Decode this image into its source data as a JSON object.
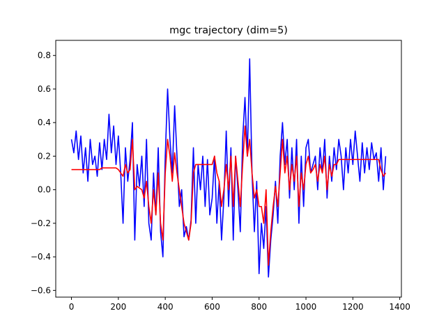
{
  "chart_data": {
    "type": "line",
    "title": "mgc trajectory (dim=5)",
    "xlabel": "",
    "ylabel": "",
    "xlim": [
      -67,
      1407
    ],
    "ylim": [
      -0.64,
      0.89
    ],
    "x_ticks": [
      0,
      200,
      400,
      600,
      800,
      1000,
      1200,
      1400
    ],
    "y_ticks": [
      -0.6,
      -0.4,
      -0.2,
      0.0,
      0.2,
      0.4,
      0.6,
      0.8
    ],
    "x_tick_labels": [
      "0",
      "200",
      "400",
      "600",
      "800",
      "1000",
      "1200",
      "1400"
    ],
    "y_tick_labels": [
      "−0.6",
      "−0.4",
      "−0.2",
      "0.0",
      "0.2",
      "0.4",
      "0.6",
      "0.8"
    ],
    "grid": false,
    "legend": "none",
    "series": [
      {
        "color": "#0000ff",
        "x": [
          0,
          10,
          20,
          30,
          40,
          50,
          60,
          70,
          80,
          90,
          100,
          110,
          120,
          130,
          140,
          150,
          160,
          170,
          180,
          190,
          200,
          210,
          220,
          230,
          240,
          250,
          260,
          270,
          280,
          290,
          300,
          310,
          320,
          330,
          340,
          350,
          360,
          370,
          380,
          390,
          400,
          410,
          420,
          430,
          440,
          450,
          460,
          470,
          480,
          490,
          500,
          510,
          520,
          530,
          540,
          550,
          560,
          570,
          580,
          590,
          600,
          610,
          620,
          630,
          640,
          650,
          660,
          670,
          680,
          690,
          700,
          710,
          720,
          730,
          740,
          750,
          760,
          770,
          780,
          790,
          800,
          810,
          820,
          830,
          840,
          850,
          860,
          870,
          880,
          890,
          900,
          910,
          920,
          930,
          940,
          950,
          960,
          970,
          980,
          990,
          1000,
          1010,
          1020,
          1030,
          1040,
          1050,
          1060,
          1070,
          1080,
          1090,
          1100,
          1110,
          1120,
          1130,
          1140,
          1150,
          1160,
          1170,
          1180,
          1190,
          1200,
          1210,
          1220,
          1230,
          1240,
          1250,
          1260,
          1270,
          1280,
          1290,
          1300,
          1310,
          1320,
          1330,
          1340
        ],
        "y": [
          0.3,
          0.22,
          0.35,
          0.18,
          0.32,
          0.1,
          0.25,
          0.05,
          0.3,
          0.15,
          0.2,
          0.08,
          0.28,
          0.12,
          0.3,
          0.18,
          0.45,
          0.22,
          0.38,
          0.15,
          0.32,
          0.1,
          -0.2,
          0.25,
          0.05,
          0.18,
          0.4,
          -0.3,
          0.15,
          0.02,
          0.2,
          -0.1,
          0.3,
          -0.2,
          -0.3,
          0.1,
          -0.15,
          0.25,
          -0.25,
          -0.4,
          0.2,
          0.6,
          0.3,
          0.1,
          0.5,
          0.2,
          -0.1,
          0.0,
          -0.28,
          -0.22,
          -0.3,
          -0.18,
          0.25,
          -0.2,
          0.15,
          0.0,
          0.2,
          -0.1,
          0.18,
          -0.15,
          -0.05,
          0.2,
          -0.2,
          0.05,
          -0.3,
          -0.05,
          0.35,
          -0.1,
          0.25,
          -0.3,
          0.2,
          0.0,
          -0.25,
          0.3,
          0.55,
          0.2,
          0.78,
          0.1,
          -0.25,
          0.05,
          -0.5,
          -0.2,
          -0.35,
          -0.1,
          -0.52,
          -0.3,
          -0.15,
          0.05,
          -0.2,
          0.2,
          0.4,
          0.15,
          0.3,
          -0.05,
          0.25,
          0.0,
          0.3,
          -0.2,
          0.2,
          -0.1,
          0.25,
          0.3,
          0.1,
          0.15,
          0.2,
          0.0,
          0.25,
          0.1,
          0.3,
          -0.05,
          0.2,
          0.05,
          0.25,
          0.12,
          0.3,
          0.2,
          0.0,
          0.25,
          0.1,
          0.3,
          0.15,
          0.35,
          0.2,
          0.05,
          0.28,
          0.1,
          0.25,
          0.12,
          0.28,
          0.18,
          0.22,
          0.05,
          0.25,
          0.0,
          0.2
        ]
      },
      {
        "color": "#ff0000",
        "x": [
          0,
          10,
          20,
          30,
          40,
          50,
          60,
          70,
          80,
          90,
          100,
          110,
          120,
          130,
          140,
          150,
          160,
          170,
          180,
          190,
          200,
          210,
          220,
          230,
          240,
          250,
          260,
          270,
          280,
          290,
          300,
          310,
          320,
          330,
          340,
          350,
          360,
          370,
          380,
          390,
          400,
          410,
          420,
          430,
          440,
          450,
          460,
          470,
          480,
          490,
          500,
          510,
          520,
          530,
          540,
          550,
          560,
          570,
          580,
          590,
          600,
          610,
          620,
          630,
          640,
          650,
          660,
          670,
          680,
          690,
          700,
          710,
          720,
          730,
          740,
          750,
          760,
          770,
          780,
          790,
          800,
          810,
          820,
          830,
          840,
          850,
          860,
          870,
          880,
          890,
          900,
          910,
          920,
          930,
          940,
          950,
          960,
          970,
          980,
          990,
          1000,
          1010,
          1020,
          1030,
          1040,
          1050,
          1060,
          1070,
          1080,
          1090,
          1100,
          1110,
          1120,
          1130,
          1140,
          1150,
          1160,
          1170,
          1180,
          1190,
          1200,
          1210,
          1220,
          1230,
          1240,
          1250,
          1260,
          1270,
          1280,
          1290,
          1300,
          1310,
          1320,
          1330,
          1340
        ],
        "y": [
          0.12,
          0.12,
          0.12,
          0.12,
          0.12,
          0.12,
          0.12,
          0.12,
          0.12,
          0.12,
          0.12,
          0.12,
          0.12,
          0.13,
          0.13,
          0.13,
          0.13,
          0.13,
          0.13,
          0.13,
          0.12,
          0.1,
          0.08,
          0.15,
          0.1,
          0.12,
          0.3,
          0.0,
          0.02,
          0.01,
          0.0,
          -0.05,
          0.05,
          -0.1,
          -0.2,
          0.0,
          -0.15,
          0.1,
          -0.2,
          -0.3,
          0.1,
          0.3,
          0.2,
          0.05,
          0.22,
          0.1,
          0.0,
          -0.1,
          -0.2,
          -0.25,
          -0.3,
          -0.2,
          0.1,
          0.15,
          0.15,
          0.15,
          0.15,
          0.15,
          0.15,
          0.15,
          0.15,
          0.2,
          0.1,
          0.05,
          -0.1,
          0.0,
          0.15,
          0.0,
          0.2,
          -0.1,
          0.2,
          0.05,
          -0.1,
          0.15,
          0.38,
          0.2,
          0.3,
          0.1,
          -0.05,
          0.0,
          -0.1,
          -0.1,
          -0.2,
          0.0,
          -0.45,
          -0.25,
          -0.1,
          0.02,
          -0.1,
          0.1,
          0.3,
          0.1,
          0.2,
          0.0,
          0.15,
          0.05,
          0.2,
          -0.1,
          0.1,
          0.0,
          0.15,
          0.2,
          0.1,
          0.12,
          0.15,
          0.05,
          0.15,
          0.1,
          0.2,
          0.0,
          0.15,
          0.08,
          0.15,
          0.15,
          0.18,
          0.18,
          0.18,
          0.18,
          0.18,
          0.18,
          0.18,
          0.18,
          0.18,
          0.18,
          0.18,
          0.18,
          0.18,
          0.18,
          0.18,
          0.18,
          0.18,
          0.18,
          0.12,
          0.08,
          0.1
        ]
      }
    ]
  }
}
